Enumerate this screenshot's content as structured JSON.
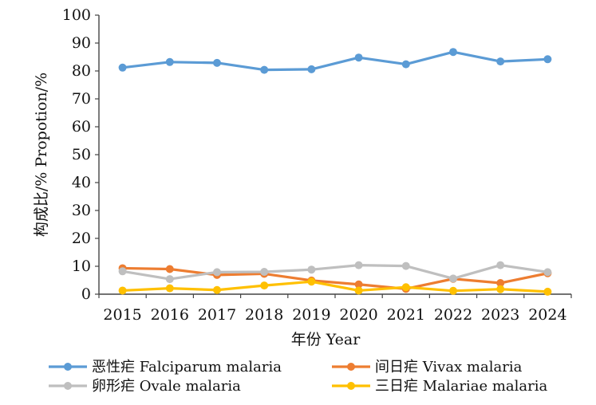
{
  "chart_data": {
    "type": "line",
    "x": [
      "2015",
      "2016",
      "2017",
      "2018",
      "2019",
      "2020",
      "2021",
      "2022",
      "2023",
      "2024"
    ],
    "ylim": [
      0,
      100
    ],
    "yticks": [
      "0",
      "10",
      "20",
      "30",
      "40",
      "50",
      "60",
      "70",
      "80",
      "90",
      "100"
    ],
    "xlabel": "年份  Year",
    "ylabel": "构成比/%  Propotion/%",
    "series": [
      {
        "name": "恶性疟 Falciparum  malaria",
        "color": "#5b9bd5",
        "values": [
          81.2,
          83.2,
          82.9,
          80.4,
          80.6,
          84.8,
          82.4,
          86.8,
          83.4,
          84.2
        ]
      },
      {
        "name": "间日疟 Vivax  malaria",
        "color": "#ed7d31",
        "values": [
          9.3,
          9.0,
          6.9,
          7.3,
          4.9,
          3.5,
          1.9,
          5.5,
          4.0,
          7.5
        ]
      },
      {
        "name": "卵形疟 Ovale  malaria",
        "color": "#bfbfbf",
        "values": [
          8.2,
          5.4,
          7.9,
          8.0,
          8.8,
          10.4,
          10.1,
          5.6,
          10.4,
          7.9
        ]
      },
      {
        "name": "三日疟 Malariae  malaria",
        "color": "#ffc000",
        "values": [
          1.3,
          2.1,
          1.5,
          3.1,
          4.5,
          1.3,
          2.5,
          1.2,
          1.8,
          0.9
        ]
      }
    ],
    "legend_position": "bottom"
  }
}
